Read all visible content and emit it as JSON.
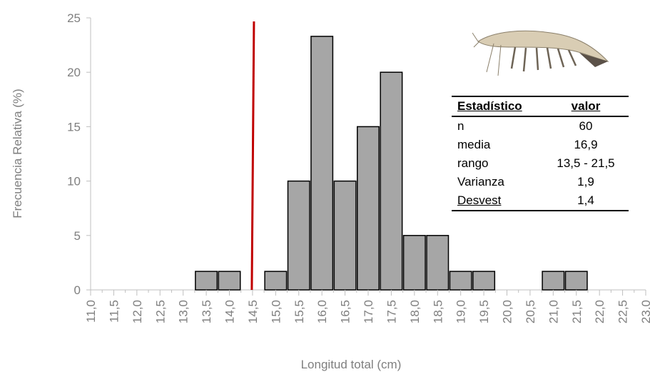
{
  "chart_data": {
    "type": "bar",
    "ylabel": "Frecuencia Relativa (%)",
    "xlabel": "Longitud total (cm)",
    "ylim": [
      0,
      25
    ],
    "yticks": [
      0,
      5,
      10,
      15,
      20,
      25
    ],
    "categories": [
      "11,0",
      "11,5",
      "12,0",
      "12,5",
      "13,0",
      "13,5",
      "14,0",
      "14,5",
      "15,0",
      "15,5",
      "16,0",
      "16,5",
      "17,0",
      "17,5",
      "18,0",
      "18,5",
      "19,0",
      "19,5",
      "20,0",
      "20,5",
      "21,0",
      "21,5",
      "22,0",
      "22,5",
      "23,0"
    ],
    "bars": [
      {
        "x": 13.5,
        "value": 1.7
      },
      {
        "x": 14.0,
        "value": 1.7
      },
      {
        "x": 15.0,
        "value": 1.7
      },
      {
        "x": 15.5,
        "value": 10
      },
      {
        "x": 16.0,
        "value": 23.3
      },
      {
        "x": 16.5,
        "value": 10
      },
      {
        "x": 17.0,
        "value": 15
      },
      {
        "x": 17.5,
        "value": 20
      },
      {
        "x": 18.0,
        "value": 5
      },
      {
        "x": 18.5,
        "value": 5
      },
      {
        "x": 19.0,
        "value": 1.7
      },
      {
        "x": 19.5,
        "value": 1.7
      },
      {
        "x": 21.0,
        "value": 1.7
      },
      {
        "x": 21.5,
        "value": 1.7
      }
    ],
    "reference_line": {
      "x": 14.5,
      "color": "#c00000"
    },
    "bar_color": "#a6a6a6",
    "grid": false
  },
  "stats_table": {
    "header": {
      "col1": "Estadístico",
      "col2": "valor"
    },
    "rows": [
      {
        "label": "n",
        "value": "60"
      },
      {
        "label": "media",
        "value": "16,9"
      },
      {
        "label": "rango",
        "value": "13,5 - 21,5"
      },
      {
        "label": "Varianza",
        "value": "1,9"
      },
      {
        "label": "Desvest",
        "value": "1,4"
      }
    ]
  }
}
